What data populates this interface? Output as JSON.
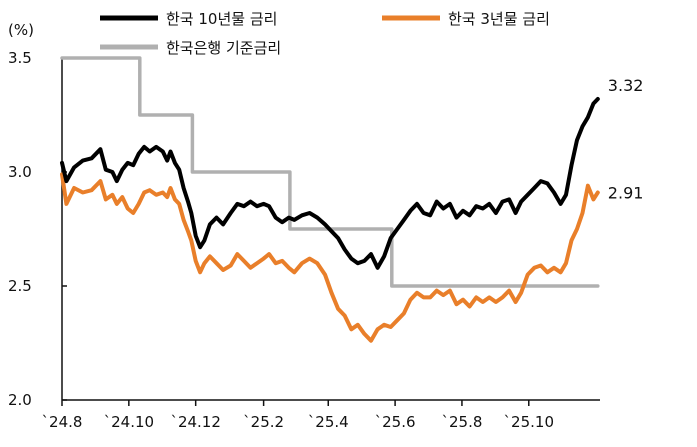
{
  "chart_data": {
    "type": "line",
    "y_unit": "(%)",
    "ylim": [
      2.0,
      3.5
    ],
    "y_ticks": [
      "2.0",
      "2.5",
      "3.0",
      "3.5"
    ],
    "x_ticks": [
      "`24.8",
      "`24.10",
      "`24.12",
      "`25.2",
      "`25.4",
      "`25.6",
      "`25.8",
      "`25.10"
    ],
    "x_tick_dates": [
      "2024-08-01",
      "2024-10-01",
      "2024-12-01",
      "2025-02-01",
      "2025-04-01",
      "2025-06-01",
      "2025-08-01",
      "2025-10-01"
    ],
    "x_range": [
      "2024-08-01",
      "2025-12-05"
    ],
    "grid": false,
    "legend_position": "top",
    "series": [
      {
        "name": "한국 10년물 금리",
        "color": "#000000",
        "end_label": "3.32",
        "points": [
          [
            "2024-08-01",
            3.04
          ],
          [
            "2024-08-05",
            2.96
          ],
          [
            "2024-08-12",
            3.02
          ],
          [
            "2024-08-20",
            3.05
          ],
          [
            "2024-08-28",
            3.06
          ],
          [
            "2024-09-05",
            3.1
          ],
          [
            "2024-09-10",
            3.01
          ],
          [
            "2024-09-16",
            3.0
          ],
          [
            "2024-09-20",
            2.96
          ],
          [
            "2024-09-25",
            3.01
          ],
          [
            "2024-09-30",
            3.04
          ],
          [
            "2024-10-05",
            3.03
          ],
          [
            "2024-10-10",
            3.08
          ],
          [
            "2024-10-15",
            3.11
          ],
          [
            "2024-10-20",
            3.09
          ],
          [
            "2024-10-26",
            3.11
          ],
          [
            "2024-11-01",
            3.09
          ],
          [
            "2024-11-05",
            3.05
          ],
          [
            "2024-11-08",
            3.09
          ],
          [
            "2024-11-12",
            3.04
          ],
          [
            "2024-11-16",
            3.01
          ],
          [
            "2024-11-20",
            2.93
          ],
          [
            "2024-11-24",
            2.87
          ],
          [
            "2024-11-27",
            2.82
          ],
          [
            "2024-12-01",
            2.72
          ],
          [
            "2024-12-05",
            2.67
          ],
          [
            "2024-12-09",
            2.7
          ],
          [
            "2024-12-14",
            2.77
          ],
          [
            "2024-12-20",
            2.8
          ],
          [
            "2024-12-26",
            2.77
          ],
          [
            "2025-01-02",
            2.82
          ],
          [
            "2025-01-08",
            2.86
          ],
          [
            "2025-01-14",
            2.85
          ],
          [
            "2025-01-20",
            2.87
          ],
          [
            "2025-01-26",
            2.85
          ],
          [
            "2025-02-01",
            2.86
          ],
          [
            "2025-02-06",
            2.85
          ],
          [
            "2025-02-12",
            2.8
          ],
          [
            "2025-02-18",
            2.78
          ],
          [
            "2025-02-24",
            2.8
          ],
          [
            "2025-03-01",
            2.79
          ],
          [
            "2025-03-08",
            2.81
          ],
          [
            "2025-03-15",
            2.82
          ],
          [
            "2025-03-22",
            2.8
          ],
          [
            "2025-03-29",
            2.77
          ],
          [
            "2025-04-04",
            2.74
          ],
          [
            "2025-04-10",
            2.71
          ],
          [
            "2025-04-16",
            2.66
          ],
          [
            "2025-04-22",
            2.62
          ],
          [
            "2025-04-28",
            2.6
          ],
          [
            "2025-05-04",
            2.61
          ],
          [
            "2025-05-10",
            2.64
          ],
          [
            "2025-05-16",
            2.58
          ],
          [
            "2025-05-22",
            2.63
          ],
          [
            "2025-05-28",
            2.71
          ],
          [
            "2025-06-03",
            2.75
          ],
          [
            "2025-06-09",
            2.79
          ],
          [
            "2025-06-15",
            2.83
          ],
          [
            "2025-06-21",
            2.86
          ],
          [
            "2025-06-27",
            2.82
          ],
          [
            "2025-07-03",
            2.81
          ],
          [
            "2025-07-09",
            2.87
          ],
          [
            "2025-07-15",
            2.84
          ],
          [
            "2025-07-21",
            2.86
          ],
          [
            "2025-07-27",
            2.8
          ],
          [
            "2025-08-02",
            2.83
          ],
          [
            "2025-08-08",
            2.81
          ],
          [
            "2025-08-14",
            2.85
          ],
          [
            "2025-08-20",
            2.84
          ],
          [
            "2025-08-26",
            2.86
          ],
          [
            "2025-09-01",
            2.82
          ],
          [
            "2025-09-07",
            2.87
          ],
          [
            "2025-09-13",
            2.88
          ],
          [
            "2025-09-19",
            2.82
          ],
          [
            "2025-09-24",
            2.87
          ],
          [
            "2025-09-30",
            2.9
          ],
          [
            "2025-10-06",
            2.93
          ],
          [
            "2025-10-12",
            2.96
          ],
          [
            "2025-10-18",
            2.95
          ],
          [
            "2025-10-24",
            2.91
          ],
          [
            "2025-10-30",
            2.86
          ],
          [
            "2025-11-04",
            2.9
          ],
          [
            "2025-11-09",
            3.03
          ],
          [
            "2025-11-14",
            3.14
          ],
          [
            "2025-11-19",
            3.2
          ],
          [
            "2025-11-24",
            3.24
          ],
          [
            "2025-11-29",
            3.3
          ],
          [
            "2025-12-03",
            3.32
          ]
        ]
      },
      {
        "name": "한국 3년물 금리",
        "color": "#e97f2a",
        "end_label": "2.91",
        "points": [
          [
            "2024-08-01",
            2.99
          ],
          [
            "2024-08-05",
            2.86
          ],
          [
            "2024-08-12",
            2.93
          ],
          [
            "2024-08-20",
            2.91
          ],
          [
            "2024-08-28",
            2.92
          ],
          [
            "2024-09-05",
            2.96
          ],
          [
            "2024-09-10",
            2.88
          ],
          [
            "2024-09-16",
            2.9
          ],
          [
            "2024-09-20",
            2.86
          ],
          [
            "2024-09-25",
            2.89
          ],
          [
            "2024-09-30",
            2.84
          ],
          [
            "2024-10-05",
            2.82
          ],
          [
            "2024-10-10",
            2.86
          ],
          [
            "2024-10-15",
            2.91
          ],
          [
            "2024-10-20",
            2.92
          ],
          [
            "2024-10-26",
            2.9
          ],
          [
            "2024-11-01",
            2.91
          ],
          [
            "2024-11-05",
            2.89
          ],
          [
            "2024-11-08",
            2.93
          ],
          [
            "2024-11-12",
            2.88
          ],
          [
            "2024-11-16",
            2.86
          ],
          [
            "2024-11-20",
            2.79
          ],
          [
            "2024-11-24",
            2.74
          ],
          [
            "2024-11-27",
            2.7
          ],
          [
            "2024-12-01",
            2.61
          ],
          [
            "2024-12-05",
            2.56
          ],
          [
            "2024-12-09",
            2.6
          ],
          [
            "2024-12-14",
            2.63
          ],
          [
            "2024-12-20",
            2.6
          ],
          [
            "2024-12-26",
            2.57
          ],
          [
            "2025-01-02",
            2.59
          ],
          [
            "2025-01-08",
            2.64
          ],
          [
            "2025-01-14",
            2.61
          ],
          [
            "2025-01-20",
            2.58
          ],
          [
            "2025-01-26",
            2.6
          ],
          [
            "2025-02-01",
            2.62
          ],
          [
            "2025-02-06",
            2.64
          ],
          [
            "2025-02-12",
            2.6
          ],
          [
            "2025-02-18",
            2.61
          ],
          [
            "2025-02-24",
            2.58
          ],
          [
            "2025-03-01",
            2.56
          ],
          [
            "2025-03-08",
            2.6
          ],
          [
            "2025-03-15",
            2.62
          ],
          [
            "2025-03-22",
            2.6
          ],
          [
            "2025-03-29",
            2.55
          ],
          [
            "2025-04-04",
            2.47
          ],
          [
            "2025-04-10",
            2.4
          ],
          [
            "2025-04-16",
            2.37
          ],
          [
            "2025-04-22",
            2.31
          ],
          [
            "2025-04-28",
            2.33
          ],
          [
            "2025-05-04",
            2.29
          ],
          [
            "2025-05-10",
            2.26
          ],
          [
            "2025-05-16",
            2.31
          ],
          [
            "2025-05-22",
            2.33
          ],
          [
            "2025-05-28",
            2.32
          ],
          [
            "2025-06-03",
            2.35
          ],
          [
            "2025-06-09",
            2.38
          ],
          [
            "2025-06-15",
            2.44
          ],
          [
            "2025-06-21",
            2.47
          ],
          [
            "2025-06-27",
            2.45
          ],
          [
            "2025-07-03",
            2.45
          ],
          [
            "2025-07-09",
            2.48
          ],
          [
            "2025-07-15",
            2.46
          ],
          [
            "2025-07-21",
            2.48
          ],
          [
            "2025-07-27",
            2.42
          ],
          [
            "2025-08-02",
            2.44
          ],
          [
            "2025-08-08",
            2.41
          ],
          [
            "2025-08-14",
            2.45
          ],
          [
            "2025-08-20",
            2.43
          ],
          [
            "2025-08-26",
            2.45
          ],
          [
            "2025-09-01",
            2.43
          ],
          [
            "2025-09-07",
            2.45
          ],
          [
            "2025-09-13",
            2.48
          ],
          [
            "2025-09-19",
            2.43
          ],
          [
            "2025-09-24",
            2.47
          ],
          [
            "2025-09-30",
            2.55
          ],
          [
            "2025-10-06",
            2.58
          ],
          [
            "2025-10-12",
            2.59
          ],
          [
            "2025-10-18",
            2.56
          ],
          [
            "2025-10-24",
            2.58
          ],
          [
            "2025-10-30",
            2.56
          ],
          [
            "2025-11-04",
            2.6
          ],
          [
            "2025-11-09",
            2.7
          ],
          [
            "2025-11-14",
            2.75
          ],
          [
            "2025-11-19",
            2.82
          ],
          [
            "2025-11-24",
            2.94
          ],
          [
            "2025-11-29",
            2.88
          ],
          [
            "2025-12-03",
            2.91
          ]
        ]
      },
      {
        "name": "한국은행 기준금리",
        "color": "#b0b0b0",
        "step": true,
        "points": [
          [
            "2024-08-01",
            3.5
          ],
          [
            "2024-10-11",
            3.25
          ],
          [
            "2024-11-28",
            3.0
          ],
          [
            "2025-02-25",
            2.75
          ],
          [
            "2025-05-29",
            2.5
          ],
          [
            "2025-12-03",
            2.5
          ]
        ]
      }
    ]
  }
}
